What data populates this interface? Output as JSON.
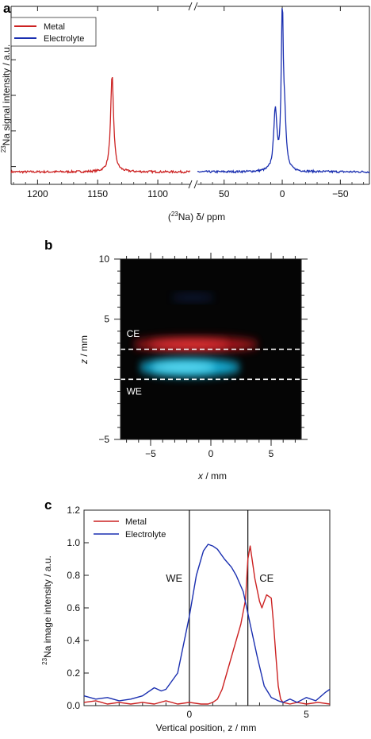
{
  "panels": {
    "a": "a",
    "b": "b",
    "c": "c"
  },
  "colors": {
    "metal": "#cc2222",
    "electrolyte": "#1a2fb0"
  },
  "chart_data": [
    {
      "type": "line",
      "panel": "a",
      "xlabel_prefix": "(",
      "xlabel_sup": "23",
      "xlabel_main": "Na) δ/ ppm",
      "ylabel_sup": "23",
      "ylabel_main": "Na signal intensity / a.u.",
      "broken_x_axis": true,
      "segments": [
        {
          "xlim": [
            1222,
            1073
          ],
          "ticks": [
            1200,
            1150,
            1100
          ],
          "tick_labels": [
            "1200",
            "1150",
            "1100"
          ]
        },
        {
          "xlim": [
            73,
            -75
          ],
          "ticks": [
            50,
            0,
            -50
          ],
          "tick_labels": [
            "50",
            "0",
            "−50"
          ]
        }
      ],
      "ylim": [
        0,
        1
      ],
      "legend": {
        "position": "top-left",
        "entries": [
          "Metal",
          "Electrolyte"
        ]
      },
      "series": [
        {
          "name": "Metal",
          "segment": 0,
          "peaks": [
            {
              "center": 1138,
              "height": 0.54,
              "width": 1.5
            }
          ],
          "baseline": 0.07
        },
        {
          "name": "Electrolyte",
          "segment": 1,
          "peaks": [
            {
              "center": 0,
              "height": 0.89,
              "width": 1.0
            },
            {
              "center": 6,
              "height": 0.34,
              "width": 1.6
            },
            {
              "center": -2,
              "height": 0.26,
              "width": 1.5
            }
          ],
          "baseline": 0.07
        }
      ]
    },
    {
      "type": "heatmap",
      "panel": "b",
      "xlabel": "x",
      "xunit": " / mm",
      "ylabel": "z",
      "yunit": " / mm",
      "xlim": [
        -7.5,
        7.5
      ],
      "ylim": [
        -5,
        10
      ],
      "xticks": [
        -5,
        0,
        5
      ],
      "xtick_labels": [
        "−5",
        "0",
        "5"
      ],
      "yticks": [
        -5,
        0,
        5,
        10
      ],
      "ytick_labels": [
        "−5",
        "",
        "5",
        "10"
      ],
      "dashed_lines_z": [
        2.5,
        0.0
      ],
      "annotations": [
        {
          "text": "CE",
          "x": -7.0,
          "z": 3.8
        },
        {
          "text": "WE",
          "x": -7.0,
          "z": -1.0
        }
      ],
      "blobs": [
        {
          "name": "Metal",
          "x": [
            -6.5,
            4.0
          ],
          "z": 2.9,
          "spread_z": 0.55,
          "color": "#d21a22"
        },
        {
          "name": "Electrolyte",
          "x": [
            -6.0,
            2.5
          ],
          "z": 1.0,
          "spread_z": 0.75,
          "color": "#19c3f0"
        }
      ]
    },
    {
      "type": "line",
      "panel": "c",
      "xlabel": "Vertical position, z / mm",
      "ylabel_sup": "23",
      "ylabel_main": "Na image intensity / a.u.",
      "xlim": [
        -4.5,
        6
      ],
      "ylim": [
        0,
        1.2
      ],
      "xticks": [
        0,
        5
      ],
      "xtick_labels": [
        "0",
        "5"
      ],
      "yticks": [
        0,
        0.2,
        0.4,
        0.6,
        0.8,
        1.0,
        1.2
      ],
      "ytick_labels": [
        "0.0",
        "0.2",
        "0.4",
        "0.6",
        "0.8",
        "1.0",
        "1.2"
      ],
      "vlines": [
        0,
        2.5
      ],
      "annotations": [
        {
          "text": "WE",
          "x": -0.65,
          "y": 0.76
        },
        {
          "text": "CE",
          "x": 3.3,
          "y": 0.76
        }
      ],
      "legend": {
        "position": "top-left",
        "entries": [
          "Metal",
          "Electrolyte"
        ]
      },
      "series": [
        {
          "name": "Metal",
          "x": [
            -4.5,
            -4.0,
            -3.5,
            -3.0,
            -2.5,
            -2.0,
            -1.5,
            -1.0,
            -0.5,
            0.0,
            0.5,
            0.8,
            1.0,
            1.2,
            1.4,
            1.6,
            1.8,
            2.0,
            2.2,
            2.4,
            2.5,
            2.6,
            2.8,
            3.0,
            3.1,
            3.2,
            3.3,
            3.4,
            3.5,
            3.6,
            3.7,
            3.8,
            3.9,
            4.0,
            4.3,
            4.6,
            5.0,
            5.5,
            6.0
          ],
          "values": [
            0.02,
            0.03,
            0.01,
            0.02,
            0.01,
            0.02,
            0.01,
            0.03,
            0.01,
            0.02,
            0.01,
            0.01,
            0.02,
            0.04,
            0.1,
            0.2,
            0.3,
            0.4,
            0.5,
            0.65,
            0.9,
            0.98,
            0.78,
            0.64,
            0.6,
            0.64,
            0.68,
            0.67,
            0.66,
            0.5,
            0.3,
            0.12,
            0.04,
            0.02,
            0.01,
            0.02,
            0.01,
            0.02,
            0.01
          ]
        },
        {
          "name": "Electrolyte",
          "x": [
            -4.5,
            -4.0,
            -3.5,
            -3.0,
            -2.5,
            -2.0,
            -1.5,
            -1.2,
            -1.0,
            -0.5,
            0.0,
            0.3,
            0.6,
            0.8,
            1.0,
            1.2,
            1.5,
            1.8,
            2.0,
            2.3,
            2.6,
            2.9,
            3.2,
            3.5,
            3.8,
            4.0,
            4.3,
            4.6,
            5.0,
            5.4,
            5.8,
            6.0
          ],
          "values": [
            0.06,
            0.04,
            0.05,
            0.03,
            0.04,
            0.06,
            0.11,
            0.09,
            0.1,
            0.2,
            0.55,
            0.8,
            0.95,
            0.99,
            0.98,
            0.96,
            0.9,
            0.85,
            0.8,
            0.7,
            0.5,
            0.3,
            0.12,
            0.05,
            0.03,
            0.02,
            0.04,
            0.02,
            0.05,
            0.03,
            0.08,
            0.1
          ]
        }
      ]
    }
  ]
}
